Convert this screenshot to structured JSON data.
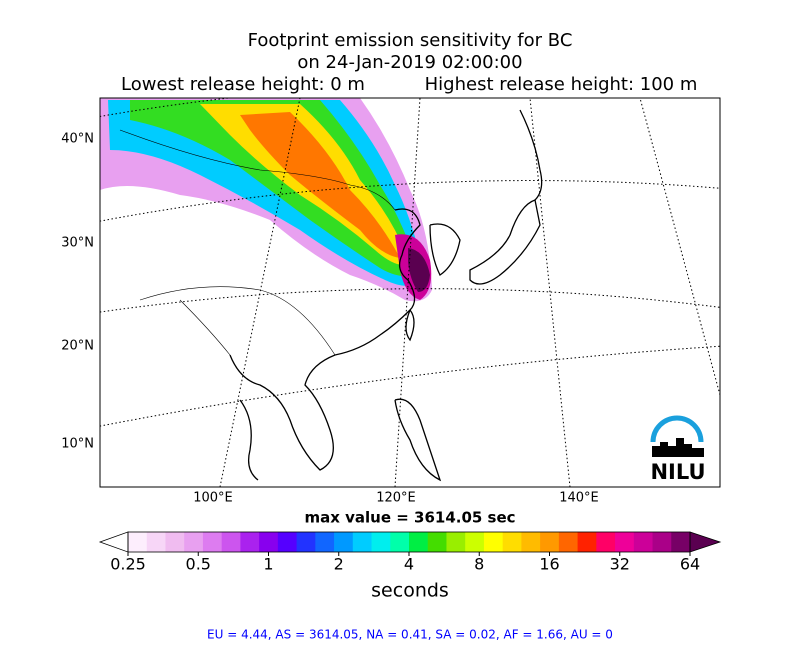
{
  "title": "Footprint emission sensitivity for BC",
  "subtitle": "on 24-Jan-2019 02:00:00",
  "release_low": "Lowest release height: 0 m",
  "release_high": "Highest release height: 100 m",
  "map": {
    "lat_labels": [
      "40°N",
      "30°N",
      "20°N",
      "10°N"
    ],
    "lon_labels": [
      "100°E",
      "120°E",
      "140°E"
    ],
    "logo": "NILU"
  },
  "max_value": "max value = 3614.05 sec",
  "colorbar": {
    "ticks": [
      0.25,
      0.5,
      1,
      2,
      4,
      8,
      16,
      32,
      64
    ],
    "lim": [
      0.25,
      64
    ],
    "log": true,
    "label": "seconds",
    "under_color": "#ffffff",
    "over_color": "#5a0050",
    "colors": [
      "#fdeefd",
      "#f7d6f7",
      "#f0bcf0",
      "#e8a0f0",
      "#dd7cf0",
      "#cc55ee",
      "#aa22ee",
      "#8800ee",
      "#5500ff",
      "#2233ff",
      "#1166ff",
      "#0099ff",
      "#00ccff",
      "#00eeee",
      "#00ffaa",
      "#00ee44",
      "#44dd00",
      "#99ee00",
      "#ccff00",
      "#ffff00",
      "#ffdd00",
      "#ffbb00",
      "#ff9900",
      "#ff6600",
      "#ff2200",
      "#ff0066",
      "#ee0099",
      "#cc0099",
      "#aa0088",
      "#770066"
    ]
  },
  "footer": "EU = 4.44,  AS = 3614.05,  NA = 0.41,  SA = 0.02,  AF = 1.66,  AU = 0"
}
